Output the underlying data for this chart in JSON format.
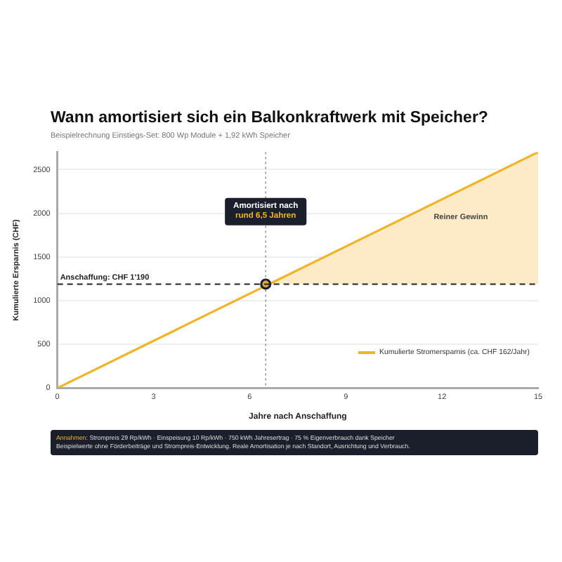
{
  "chart_data": {
    "type": "line",
    "title": "Wann amortisiert sich ein Balkonkraftwerk mit Speicher?",
    "subtitle": "Beispielrechnung Einstiegs-Set: 800 Wp Module + 1,92 kWh Speicher",
    "xlabel": "Jahre nach Anschaffung",
    "ylabel": "Kumulierte Ersparnis (CHF)",
    "xlim": [
      0,
      15
    ],
    "xticks": [
      0,
      3,
      6,
      9,
      12,
      15
    ],
    "ylim": [
      0,
      2700
    ],
    "yticks": [
      0,
      500,
      1000,
      1500,
      2000,
      2500
    ],
    "grid": "y",
    "legend": "bottom right",
    "series": [
      {
        "type": "area",
        "color": "#fdebc8",
        "x": [
          6.5,
          15
        ],
        "values": [
          1190,
          2700
        ]
      },
      {
        "name": "Kumulierte Stromersparnis (ca. CHF 162/Jahr)",
        "color": "#f0b429",
        "x": [
          0,
          15
        ],
        "values": [
          0,
          2700
        ]
      },
      {
        "type": "scatter",
        "color": "#1a1f2b",
        "x": [
          6.5
        ],
        "values": [
          1190
        ],
        "marker": "circle"
      }
    ],
    "ref_lines": [
      {
        "axis": "y",
        "value": 1190,
        "label": "Anschaffung: CHF 1'190",
        "color": "#222222",
        "line_style": "dashed"
      },
      {
        "axis": "x",
        "value": 6.5,
        "color": "#888888",
        "line_style": "dotted"
      }
    ],
    "annotations": [
      {
        "text": "Amortisiert nach",
        "x": 6.5,
        "y": 2080
      },
      {
        "text": "rund 6,5 Jahren",
        "x": 6.5,
        "y": 1960
      },
      "Reiner Gewinn",
      "Annahmen: Strompreis 29 Rp/kWh · Einspeisung 10 Rp/kWh · 750 kWh Jahresertrag · 75 % Eigenverbrauch dank Speicher",
      "Beispielwerte ohne Förderbeiträge und Strompreis-Entwicklung. Reale Amortisation je nach Standort, Ausrichtung und Verbrauch."
    ]
  }
}
